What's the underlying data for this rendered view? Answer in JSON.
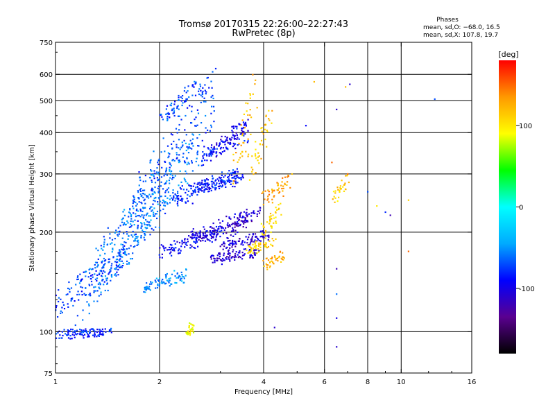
{
  "chart_data": {
    "type": "scatter",
    "title": "Tromsø 20170315 22:26:00–22:27:43",
    "subtitle": "RwPretec (8p)",
    "xlabel": "Frequency [MHz]",
    "ylabel": "Stationary phase Virtual Height [km]",
    "x_scale": "log",
    "y_scale": "log",
    "xlim": [
      1,
      16
    ],
    "ylim": [
      75,
      750
    ],
    "x_ticks": [
      1,
      2,
      4,
      6,
      8,
      10,
      16
    ],
    "y_ticks": [
      75,
      100,
      200,
      300,
      400,
      500,
      600,
      750
    ],
    "x_gridlines": [
      2,
      4,
      6,
      8,
      10
    ],
    "y_gridlines": [
      100,
      200,
      300,
      400,
      500,
      600
    ],
    "grid": true,
    "legend": {
      "title": "Phases",
      "lines": [
        "mean, sd,O: −68.0, 16.5",
        "mean, sd,X: 107.8, 19.7"
      ],
      "placement": "top-right"
    },
    "colorbar": {
      "label": "[deg]",
      "range": [
        -180,
        180
      ],
      "ticks": [
        100,
        0,
        -100
      ],
      "colors": [
        "#000000",
        "#5a0090",
        "#0000ff",
        "#00aaff",
        "#00ffff",
        "#00ff00",
        "#ffff00",
        "#ff9900",
        "#ff0000"
      ]
    },
    "series": [
      {
        "traces": [
          {
            "f": [
              1.0,
              1.45
            ],
            "h": [
              98,
              100
            ],
            "p": -80
          },
          {
            "f": [
              1.0,
              1.6
            ],
            "h": [
              120,
              170
            ],
            "p": -75
          },
          {
            "f": [
              1.15,
              2.0
            ],
            "h": [
              125,
              250
            ],
            "p": -60
          },
          {
            "f": [
              1.3,
              2.2
            ],
            "h": [
              150,
              300
            ],
            "p": -65
          },
          {
            "f": [
              1.5,
              2.6
            ],
            "h": [
              180,
              380
            ],
            "p": -55
          },
          {
            "f": [
              1.7,
              2.9
            ],
            "h": [
              240,
              520
            ],
            "p": -70
          },
          {
            "f": [
              2.0,
              3.0
            ],
            "h": [
              175,
              200
            ],
            "p": -95
          },
          {
            "f": [
              2.2,
              3.4
            ],
            "h": [
              250,
              300
            ],
            "p": -80
          },
          {
            "f": [
              2.4,
              3.5
            ],
            "h": [
              270,
              290
            ],
            "p": -90
          },
          {
            "f": [
              2.5,
              3.6
            ],
            "h": [
              190,
              225
            ],
            "p": -105
          },
          {
            "f": [
              2.6,
              3.6
            ],
            "h": [
              335,
              400
            ],
            "p": -85
          },
          {
            "f": [
              2.8,
              3.9
            ],
            "h": [
              165,
              175
            ],
            "p": -110
          },
          {
            "f": [
              3.0,
              4.1
            ],
            "h": [
              180,
              195
            ],
            "p": -108
          },
          {
            "f": [
              3.1,
              3.9
            ],
            "h": [
              200,
              235
            ],
            "p": -115
          },
          {
            "f": [
              1.8,
              2.4
            ],
            "h": [
              135,
              150
            ],
            "p": -50
          },
          {
            "f": [
              2.0,
              2.7
            ],
            "h": [
              440,
              560
            ],
            "p": -72
          },
          {
            "f": [
              2.9,
              3.6
            ],
            "h": [
              360,
              430
            ],
            "p": -100
          }
        ]
      },
      {
        "traces": [
          {
            "f": [
              3.3,
              3.8
            ],
            "h": [
              300,
              560
            ],
            "p": 120
          },
          {
            "f": [
              3.6,
              4.2
            ],
            "h": [
              300,
              450
            ],
            "p": 115
          },
          {
            "f": [
              3.9,
              4.5
            ],
            "h": [
              195,
              240
            ],
            "p": 105
          },
          {
            "f": [
              3.6,
              4.3
            ],
            "h": [
              175,
              190
            ],
            "p": 110
          },
          {
            "f": [
              4.0,
              4.6
            ],
            "h": [
              160,
              170
            ],
            "p": 125
          },
          {
            "f": [
              4.0,
              4.8
            ],
            "h": [
              250,
              290
            ],
            "p": 130
          },
          {
            "f": [
              2.4,
              2.5
            ],
            "h": [
              100,
              104
            ],
            "p": 90
          },
          {
            "f": [
              6.4,
              7.0
            ],
            "h": [
              255,
              290
            ],
            "p": 110
          }
        ]
      }
    ],
    "scatter_points": [
      {
        "f": 6.5,
        "h": 90,
        "p": -110
      },
      {
        "f": 6.5,
        "h": 470,
        "p": -110
      },
      {
        "f": 6.5,
        "h": 155,
        "p": -120
      },
      {
        "f": 6.5,
        "h": 110,
        "p": -100
      },
      {
        "f": 6.5,
        "h": 130,
        "p": -60
      },
      {
        "f": 6.9,
        "h": 550,
        "p": 120
      },
      {
        "f": 7.1,
        "h": 560,
        "p": -110
      },
      {
        "f": 8.0,
        "h": 265,
        "p": -70
      },
      {
        "f": 8.5,
        "h": 240,
        "p": 100
      },
      {
        "f": 9.0,
        "h": 230,
        "p": -80
      },
      {
        "f": 9.3,
        "h": 225,
        "p": -120
      },
      {
        "f": 10.5,
        "h": 250,
        "p": 110
      },
      {
        "f": 12.5,
        "h": 505,
        "p": -70
      },
      {
        "f": 10.5,
        "h": 175,
        "p": 150
      },
      {
        "f": 4.3,
        "h": 103,
        "p": -110
      },
      {
        "f": 5.3,
        "h": 420,
        "p": -90
      },
      {
        "f": 5.6,
        "h": 570,
        "p": 120
      },
      {
        "f": 6.3,
        "h": 325,
        "p": 150
      },
      {
        "f": 7.0,
        "h": 300,
        "p": 150
      }
    ]
  }
}
